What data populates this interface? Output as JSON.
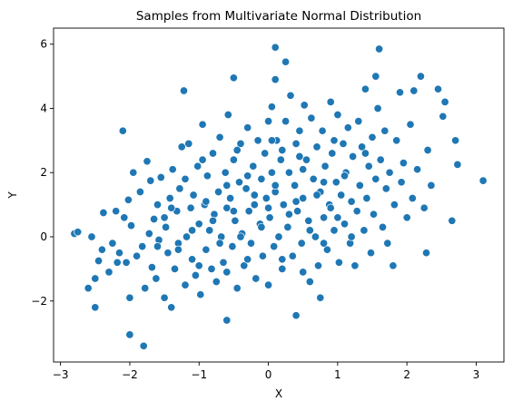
{
  "chart_data": {
    "type": "scatter",
    "title": "Samples from Multivariate Normal Distribution",
    "xlabel": "X",
    "ylabel": "Y",
    "xlim": [
      -3.1,
      3.4
    ],
    "ylim": [
      -3.9,
      6.5
    ],
    "xticks": [
      -3,
      -2,
      -1,
      0,
      1,
      2,
      3
    ],
    "yticks": [
      -2,
      0,
      2,
      4,
      6
    ],
    "grid": false,
    "marker_color": "#1f77b4",
    "points": [
      [
        -2.8,
        0.1
      ],
      [
        -2.75,
        0.15
      ],
      [
        -2.6,
        -1.6
      ],
      [
        -2.55,
        0.0
      ],
      [
        -2.5,
        -2.2
      ],
      [
        -2.5,
        -1.3
      ],
      [
        -2.45,
        -0.75
      ],
      [
        -2.4,
        -0.4
      ],
      [
        -2.38,
        0.75
      ],
      [
        -2.3,
        -1.1
      ],
      [
        -2.25,
        -0.2
      ],
      [
        -2.2,
        0.8
      ],
      [
        -2.18,
        -0.8
      ],
      [
        -2.15,
        -0.5
      ],
      [
        -2.1,
        3.3
      ],
      [
        -2.08,
        0.6
      ],
      [
        -2.05,
        -0.8
      ],
      [
        -2.02,
        1.15
      ],
      [
        -2.0,
        -1.9
      ],
      [
        -2.0,
        -3.05
      ],
      [
        -1.98,
        0.35
      ],
      [
        -1.95,
        2.0
      ],
      [
        -1.9,
        -0.6
      ],
      [
        -1.85,
        1.4
      ],
      [
        -1.82,
        -0.3
      ],
      [
        -1.8,
        -3.4
      ],
      [
        -1.78,
        -1.6
      ],
      [
        -1.75,
        2.35
      ],
      [
        -1.72,
        0.1
      ],
      [
        -1.7,
        1.75
      ],
      [
        -1.68,
        -0.95
      ],
      [
        -1.65,
        0.55
      ],
      [
        -1.62,
        -1.3
      ],
      [
        -1.6,
        1.0
      ],
      [
        -1.58,
        -0.1
      ],
      [
        -1.55,
        1.85
      ],
      [
        -1.5,
        -1.9
      ],
      [
        -1.48,
        0.3
      ],
      [
        -1.45,
        -0.5
      ],
      [
        -1.42,
        1.2
      ],
      [
        -1.4,
        -2.2
      ],
      [
        -1.38,
        2.1
      ],
      [
        -1.35,
        -1.0
      ],
      [
        -1.32,
        0.8
      ],
      [
        -1.3,
        -0.2
      ],
      [
        -1.28,
        1.5
      ],
      [
        -1.25,
        2.8
      ],
      [
        -1.22,
        4.55
      ],
      [
        -1.2,
        -1.5
      ],
      [
        -1.18,
        0.0
      ],
      [
        -1.15,
        2.9
      ],
      [
        -1.12,
        0.9
      ],
      [
        -1.1,
        -0.7
      ],
      [
        -1.08,
        1.3
      ],
      [
        -1.05,
        -1.2
      ],
      [
        -1.02,
        2.2
      ],
      [
        -1.0,
        0.4
      ],
      [
        -0.98,
        -1.8
      ],
      [
        -0.95,
        3.5
      ],
      [
        -0.92,
        1.0
      ],
      [
        -0.9,
        -0.4
      ],
      [
        -0.88,
        1.9
      ],
      [
        -0.85,
        0.2
      ],
      [
        -0.82,
        -1.0
      ],
      [
        -0.8,
        2.6
      ],
      [
        -0.78,
        0.7
      ],
      [
        -0.75,
        -1.4
      ],
      [
        -0.72,
        1.4
      ],
      [
        -0.7,
        3.1
      ],
      [
        -0.68,
        0.0
      ],
      [
        -0.65,
        -0.8
      ],
      [
        -0.62,
        2.0
      ],
      [
        -0.6,
        0.9
      ],
      [
        -0.6,
        -2.6
      ],
      [
        -0.58,
        3.8
      ],
      [
        -0.55,
        1.2
      ],
      [
        -0.52,
        -0.3
      ],
      [
        -0.5,
        4.95
      ],
      [
        -0.5,
        2.4
      ],
      [
        -0.48,
        0.5
      ],
      [
        -0.45,
        -1.6
      ],
      [
        -0.42,
        1.7
      ],
      [
        -0.4,
        2.9
      ],
      [
        -0.38,
        0.1
      ],
      [
        -0.35,
        -0.9
      ],
      [
        -0.32,
        1.5
      ],
      [
        -0.3,
        3.4
      ],
      [
        -0.28,
        0.8
      ],
      [
        -0.25,
        -0.2
      ],
      [
        -0.22,
        2.2
      ],
      [
        -0.2,
        1.0
      ],
      [
        -0.18,
        -1.3
      ],
      [
        -0.15,
        3.0
      ],
      [
        -0.12,
        0.4
      ],
      [
        -0.1,
        1.8
      ],
      [
        -0.08,
        -0.6
      ],
      [
        -0.05,
        2.6
      ],
      [
        -0.03,
        1.2
      ],
      [
        0.0,
        3.6
      ],
      [
        0.0,
        -1.5
      ],
      [
        0.02,
        0.6
      ],
      [
        0.05,
        4.05
      ],
      [
        0.05,
        2.0
      ],
      [
        0.08,
        -0.3
      ],
      [
        0.1,
        4.9
      ],
      [
        0.1,
        1.4
      ],
      [
        0.1,
        5.9
      ],
      [
        0.12,
        3.0
      ],
      [
        0.15,
        0.0
      ],
      [
        0.18,
        2.4
      ],
      [
        0.2,
        -1.0
      ],
      [
        0.22,
        1.0
      ],
      [
        0.25,
        3.6
      ],
      [
        0.25,
        5.45
      ],
      [
        0.28,
        0.3
      ],
      [
        0.3,
        2.0
      ],
      [
        0.32,
        4.4
      ],
      [
        0.35,
        -0.6
      ],
      [
        0.38,
        1.6
      ],
      [
        0.4,
        2.9
      ],
      [
        0.4,
        -2.45
      ],
      [
        0.42,
        0.8
      ],
      [
        0.45,
        3.3
      ],
      [
        0.48,
        -0.2
      ],
      [
        0.5,
        1.2
      ],
      [
        0.52,
        4.1
      ],
      [
        0.55,
        2.4
      ],
      [
        0.58,
        0.5
      ],
      [
        0.6,
        -1.4
      ],
      [
        0.62,
        3.7
      ],
      [
        0.65,
        1.8
      ],
      [
        0.68,
        0.0
      ],
      [
        0.7,
        2.8
      ],
      [
        0.72,
        -0.9
      ],
      [
        0.75,
        1.4
      ],
      [
        0.75,
        -1.9
      ],
      [
        0.78,
        3.3
      ],
      [
        0.8,
        0.6
      ],
      [
        0.82,
        2.2
      ],
      [
        0.85,
        -0.4
      ],
      [
        0.88,
        1.0
      ],
      [
        0.9,
        4.2
      ],
      [
        0.92,
        2.6
      ],
      [
        0.95,
        0.2
      ],
      [
        0.98,
        1.7
      ],
      [
        1.0,
        3.8
      ],
      [
        1.02,
        -0.8
      ],
      [
        1.05,
        1.3
      ],
      [
        1.08,
        2.9
      ],
      [
        1.1,
        0.4
      ],
      [
        1.12,
        2.0
      ],
      [
        1.15,
        3.4
      ],
      [
        1.18,
        -0.2
      ],
      [
        1.2,
        1.1
      ],
      [
        1.22,
        2.5
      ],
      [
        1.25,
        -0.9
      ],
      [
        1.28,
        0.8
      ],
      [
        1.3,
        3.6
      ],
      [
        1.32,
        1.6
      ],
      [
        1.35,
        2.8
      ],
      [
        1.38,
        0.2
      ],
      [
        1.4,
        4.6
      ],
      [
        1.42,
        1.2
      ],
      [
        1.45,
        2.2
      ],
      [
        1.48,
        -0.5
      ],
      [
        1.5,
        3.1
      ],
      [
        1.52,
        0.7
      ],
      [
        1.55,
        5.0
      ],
      [
        1.55,
        1.8
      ],
      [
        1.58,
        4.0
      ],
      [
        1.6,
        5.85
      ],
      [
        1.62,
        2.4
      ],
      [
        1.65,
        0.3
      ],
      [
        1.68,
        3.3
      ],
      [
        1.7,
        1.5
      ],
      [
        1.72,
        -0.2
      ],
      [
        1.75,
        2.0
      ],
      [
        1.8,
        -0.9
      ],
      [
        1.82,
        1.0
      ],
      [
        1.85,
        3.0
      ],
      [
        1.9,
        4.5
      ],
      [
        1.92,
        1.7
      ],
      [
        1.95,
        2.3
      ],
      [
        2.0,
        0.6
      ],
      [
        2.05,
        3.5
      ],
      [
        2.08,
        1.2
      ],
      [
        2.1,
        4.55
      ],
      [
        2.15,
        2.1
      ],
      [
        2.2,
        5.0
      ],
      [
        2.25,
        0.9
      ],
      [
        2.28,
        -0.5
      ],
      [
        2.3,
        2.7
      ],
      [
        2.35,
        1.6
      ],
      [
        2.45,
        4.6
      ],
      [
        2.52,
        3.75
      ],
      [
        2.55,
        4.2
      ],
      [
        2.65,
        0.5
      ],
      [
        2.7,
        3.0
      ],
      [
        2.73,
        2.25
      ],
      [
        3.1,
        1.75
      ],
      [
        -1.5,
        0.6
      ],
      [
        -1.2,
        1.8
      ],
      [
        -1.1,
        0.2
      ],
      [
        -0.9,
        1.1
      ],
      [
        -0.7,
        -0.2
      ],
      [
        -0.5,
        0.8
      ],
      [
        -0.3,
        1.9
      ],
      [
        -0.1,
        0.3
      ],
      [
        0.1,
        1.6
      ],
      [
        0.3,
        0.7
      ],
      [
        0.5,
        2.1
      ],
      [
        0.7,
        1.3
      ],
      [
        0.9,
        0.9
      ],
      [
        1.1,
        1.9
      ],
      [
        -0.8,
        0.5
      ],
      [
        -0.6,
        1.6
      ],
      [
        -0.4,
        0.0
      ],
      [
        -0.2,
        1.3
      ],
      [
        0.0,
        0.9
      ],
      [
        0.2,
        2.7
      ],
      [
        0.4,
        1.1
      ],
      [
        0.6,
        0.2
      ],
      [
        0.8,
        1.7
      ],
      [
        1.0,
        0.6
      ],
      [
        -1.3,
        -0.4
      ],
      [
        -1.0,
        -0.9
      ],
      [
        -0.6,
        -1.1
      ],
      [
        -0.3,
        -0.7
      ],
      [
        0.2,
        -0.7
      ],
      [
        0.5,
        -1.1
      ],
      [
        0.8,
        -0.2
      ],
      [
        1.2,
        0.0
      ],
      [
        -1.6,
        -0.3
      ],
      [
        -1.4,
        0.9
      ],
      [
        -0.95,
        2.4
      ],
      [
        -0.45,
        2.7
      ],
      [
        0.05,
        3.0
      ],
      [
        0.45,
        2.5
      ],
      [
        0.95,
        3.0
      ],
      [
        1.4,
        2.6
      ]
    ]
  }
}
